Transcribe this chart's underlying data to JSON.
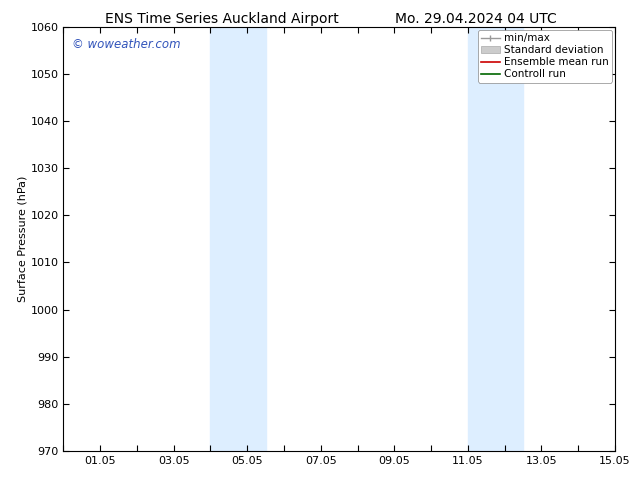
{
  "title_left": "ENS Time Series Auckland Airport",
  "title_right": "Mo. 29.04.2024 04 UTC",
  "ylabel": "Surface Pressure (hPa)",
  "xlim": [
    0.0,
    15.0
  ],
  "ylim": [
    970,
    1060
  ],
  "yticks": [
    970,
    980,
    990,
    1000,
    1010,
    1020,
    1030,
    1040,
    1050,
    1060
  ],
  "xtick_labels": [
    "",
    "01.05",
    "",
    "03.05",
    "",
    "05.05",
    "",
    "07.05",
    "",
    "09.05",
    "",
    "11.05",
    "",
    "13.05",
    "",
    "15.05"
  ],
  "xtick_positions": [
    0,
    1,
    2,
    3,
    4,
    5,
    6,
    7,
    8,
    9,
    10,
    11,
    12,
    13,
    14,
    15
  ],
  "shaded_bands": [
    {
      "xmin": 4.0,
      "xmax": 5.5
    },
    {
      "xmin": 11.0,
      "xmax": 12.5
    }
  ],
  "shade_color": "#ddeeff",
  "watermark_text": "© woweather.com",
  "watermark_color": "#3355bb",
  "bg_color": "#ffffff",
  "title_fontsize": 10,
  "tick_fontsize": 8,
  "ylabel_fontsize": 8,
  "legend_fontsize": 7.5,
  "watermark_fontsize": 8.5
}
